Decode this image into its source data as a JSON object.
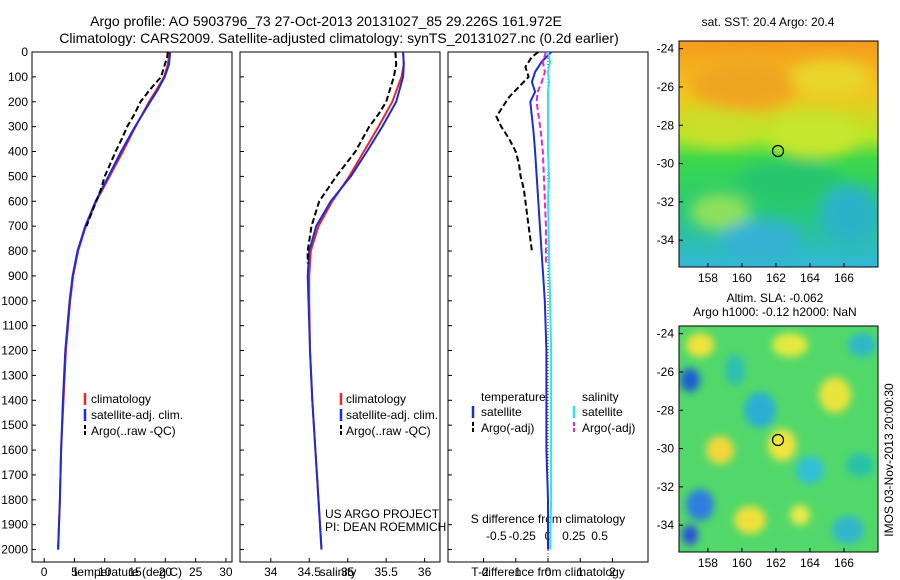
{
  "title_line1": "Argo profile: AO 5903796_73 27-Oct-2013 20131027_85 29.226S 161.972E",
  "title_line2": "Climatology: CARS2009. Satellite-adjusted climatology: synTS_20131027.nc (0.2d earlier)",
  "credit_line1": "US ARGO PROJECT",
  "credit_line2": "PI: DEAN ROEMMICH",
  "watermark": "IMOS 03-Nov-2013 20:00:30",
  "map_sst": {
    "title": "sat. SST: 20.4 Argo: 20.4",
    "xticks": [
      "158",
      "160",
      "162",
      "164",
      "166"
    ],
    "yticks": [
      "-24",
      "-26",
      "-28",
      "-30",
      "-32",
      "-34"
    ]
  },
  "map_sla": {
    "title1": "Altim. SLA: -0.062",
    "title2": "Argo h1000: -0.12 h2000: NaN",
    "xticks": [
      "158",
      "160",
      "162",
      "164",
      "166"
    ],
    "yticks": [
      "-24",
      "-26",
      "-28",
      "-30",
      "-32",
      "-34"
    ]
  },
  "colors": {
    "climatology": "#e8262b",
    "satellite": "#1c2cd6",
    "argo": "#000000",
    "sat_salinity": "#27e8f0",
    "argo_salinity": "#e027d0"
  },
  "chart_data": [
    {
      "type": "line",
      "xlabel": "temperature (deg C)",
      "xlim": [
        -2,
        31
      ],
      "ylim": [
        0,
        2050
      ],
      "xticks": [
        "0",
        "5",
        "10",
        "15",
        "20",
        "25",
        "30"
      ],
      "yticks": [
        "0",
        "100",
        "200",
        "300",
        "400",
        "500",
        "600",
        "700",
        "800",
        "900",
        "1000",
        "1100",
        "1200",
        "1300",
        "1400",
        "1500",
        "1600",
        "1700",
        "1800",
        "1900",
        "2000"
      ],
      "legend": [
        "climatology",
        "satellite-adj. clim.",
        "Argo(..raw -QC)"
      ],
      "series": [
        {
          "name": "climatology",
          "depth": [
            0,
            50,
            100,
            150,
            200,
            300,
            400,
            500,
            600,
            700,
            800,
            900,
            1000,
            1200,
            1400,
            1600,
            1800,
            2000
          ],
          "values": [
            20.7,
            20.4,
            19.8,
            18.6,
            17.3,
            15.1,
            13.0,
            10.8,
            8.6,
            6.9,
            5.6,
            4.8,
            4.3,
            3.6,
            3.2,
            2.8,
            2.6,
            2.3
          ]
        },
        {
          "name": "satellite-adj. clim.",
          "depth": [
            0,
            50,
            100,
            150,
            200,
            300,
            400,
            500,
            600,
            700,
            800,
            900,
            1000,
            1200,
            1400,
            1600,
            1800,
            2000
          ],
          "values": [
            20.8,
            20.6,
            19.9,
            18.8,
            17.5,
            15.0,
            12.7,
            10.6,
            8.5,
            6.8,
            5.5,
            4.7,
            4.2,
            3.5,
            3.1,
            2.8,
            2.6,
            2.3
          ]
        },
        {
          "name": "Argo(..raw -QC)",
          "depth": [
            0,
            20,
            60,
            100,
            150,
            200,
            250,
            300,
            350,
            400,
            450,
            500,
            550,
            600,
            700
          ],
          "values": [
            20.4,
            20.3,
            19.8,
            19.3,
            17.5,
            15.9,
            14.9,
            13.7,
            12.8,
            11.8,
            10.9,
            10.0,
            9.4,
            8.6,
            7.0
          ]
        }
      ]
    },
    {
      "type": "line",
      "xlabel": "salinity",
      "xlim": [
        33.6,
        36.2
      ],
      "ylim": [
        0,
        2050
      ],
      "xticks": [
        "34",
        "34.5",
        "35",
        "35.5",
        "36"
      ],
      "legend": [
        "climatology",
        "satellite-adj. clim.",
        "Argo(..raw -QC)"
      ],
      "series": [
        {
          "name": "climatology",
          "depth": [
            0,
            50,
            100,
            200,
            300,
            400,
            500,
            600,
            700,
            800,
            900,
            1000,
            1200,
            1400,
            1600,
            1800,
            2000
          ],
          "values": [
            35.72,
            35.73,
            35.7,
            35.58,
            35.4,
            35.21,
            35.02,
            34.8,
            34.62,
            34.52,
            34.5,
            34.5,
            34.51,
            34.54,
            34.58,
            34.62,
            34.66
          ]
        },
        {
          "name": "satellite-adj. clim.",
          "depth": [
            0,
            50,
            100,
            200,
            300,
            400,
            500,
            600,
            700,
            800,
            900,
            1000,
            1200,
            1400,
            1600,
            1800,
            2000
          ],
          "values": [
            35.72,
            35.73,
            35.72,
            35.63,
            35.45,
            35.25,
            35.04,
            34.78,
            34.59,
            34.5,
            34.48,
            34.49,
            34.51,
            34.54,
            34.58,
            34.62,
            34.66
          ]
        },
        {
          "name": "Argo(..raw -QC)",
          "depth": [
            0,
            50,
            100,
            150,
            200,
            250,
            300,
            400,
            500,
            600,
            700,
            800,
            850
          ],
          "values": [
            35.62,
            35.63,
            35.6,
            35.55,
            35.5,
            35.4,
            35.28,
            35.1,
            34.85,
            34.63,
            34.53,
            34.48,
            34.48
          ]
        }
      ]
    },
    {
      "type": "line",
      "xlabel": "T difference from climatology",
      "xlabel2": "S difference from climatology",
      "xlim": [
        -3.1,
        3.1
      ],
      "ylim": [
        0,
        2050
      ],
      "xticks": [
        "-2",
        "-1",
        "0",
        "1",
        "2"
      ],
      "xticks2": [
        "-0.5",
        "-0.25",
        "0",
        "0.25",
        "0.5"
      ],
      "legend_headers": [
        "temperature",
        "salinity"
      ],
      "legend": [
        "satellite",
        "Argo(-adj)",
        "satellite",
        "Argo(-adj)"
      ],
      "series": [
        {
          "name": "temperature satellite",
          "depth": [
            0,
            40,
            80,
            120,
            160,
            200,
            260,
            320,
            400,
            500,
            600,
            700,
            800,
            900,
            1000,
            1200,
            1400,
            1600,
            1800,
            2000
          ],
          "values": [
            0.1,
            -0.2,
            -0.4,
            -0.5,
            -0.4,
            -0.55,
            -0.5,
            -0.45,
            -0.4,
            -0.35,
            -0.3,
            -0.25,
            -0.2,
            -0.15,
            -0.1,
            -0.05,
            -0.05,
            -0.05,
            0.0,
            0.0
          ]
        },
        {
          "name": "temperature Argo(-adj)",
          "depth": [
            0,
            20,
            60,
            100,
            140,
            180,
            220,
            260,
            300,
            350,
            400,
            450,
            500,
            550,
            600,
            650,
            700,
            750,
            800
          ],
          "values": [
            -0.3,
            -0.5,
            -0.7,
            -0.6,
            -0.9,
            -1.2,
            -1.4,
            -1.6,
            -1.45,
            -1.2,
            -1.0,
            -0.9,
            -0.85,
            -0.75,
            -0.7,
            -0.65,
            -0.6,
            -0.55,
            -0.5
          ]
        },
        {
          "name": "salinity satellite",
          "depth": [
            0,
            40,
            80,
            120,
            160,
            200,
            300,
            400,
            500,
            600,
            800,
            1000,
            1200,
            1400,
            1600,
            1800,
            2000
          ],
          "values": [
            0.0,
            0.02,
            0.0,
            0.01,
            0.0,
            0.0,
            0.0,
            0.0,
            0.01,
            0.0,
            0.01,
            0.02,
            0.03,
            0.03,
            0.03,
            0.03,
            0.02
          ]
        },
        {
          "name": "salinity Argo(-adj)",
          "depth": [
            0,
            40,
            80,
            120,
            160,
            200,
            260,
            320,
            400,
            500,
            600,
            700,
            800,
            850
          ],
          "values": [
            -0.02,
            -0.05,
            -0.03,
            -0.06,
            -0.1,
            -0.11,
            -0.09,
            -0.07,
            -0.05,
            -0.04,
            -0.03,
            -0.02,
            -0.02,
            -0.02
          ]
        }
      ]
    }
  ]
}
